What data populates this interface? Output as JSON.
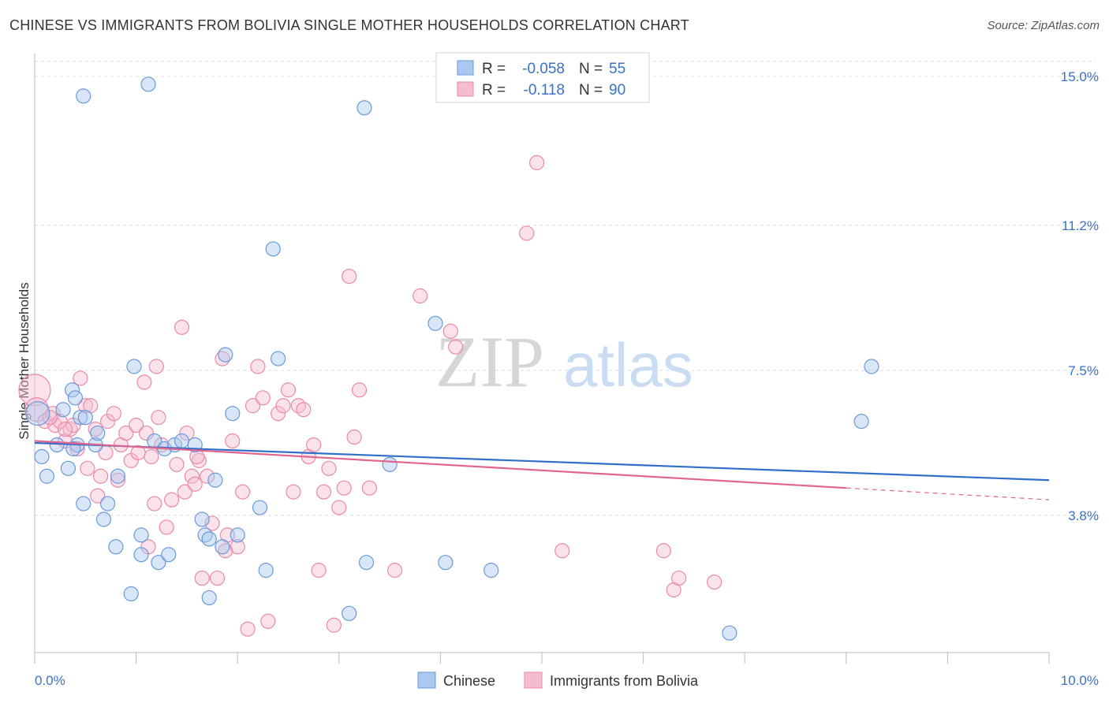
{
  "title": "CHINESE VS IMMIGRANTS FROM BOLIVIA SINGLE MOTHER HOUSEHOLDS CORRELATION CHART",
  "source": "Source: ZipAtlas.com",
  "watermark": {
    "part1": "ZIP",
    "part2": "atlas"
  },
  "legend": {
    "rows": [
      {
        "r_label": "R =",
        "r_value": "-0.058",
        "n_label": "N =",
        "n_value": "55"
      },
      {
        "r_label": "R =",
        "r_value": "-0.118",
        "n_label": "N =",
        "n_value": "90"
      }
    ]
  },
  "bottom_legend": [
    "Chinese",
    "Immigrants from Bolivia"
  ],
  "colors": {
    "chinese_fill": "#aac8f0",
    "chinese_stroke": "#6a9ad8",
    "chinese_line": "#2f6fc8",
    "bolivia_fill": "#f5bcd0",
    "bolivia_stroke": "#e88aaa",
    "bolivia_line": "#e0658e",
    "grid": "#dddddd",
    "tick_label": "#3a72c4"
  },
  "chart_data": {
    "type": "scatter",
    "title": "CHINESE VS IMMIGRANTS FROM BOLIVIA SINGLE MOTHER HOUSEHOLDS CORRELATION CHART",
    "xlabel": "",
    "ylabel": "Single Mother Households",
    "xlim": [
      0.0,
      10.0
    ],
    "ylim": [
      0.0,
      15.5
    ],
    "x_tick_labels": {
      "left": "0.0%",
      "right": "10.0%"
    },
    "y_ticks": [
      {
        "value": 3.8,
        "label": "3.8%"
      },
      {
        "value": 7.5,
        "label": "7.5%"
      },
      {
        "value": 11.2,
        "label": "11.2%"
      },
      {
        "value": 15.0,
        "label": "15.0%"
      }
    ],
    "series": [
      {
        "name": "Chinese",
        "trend": {
          "x0": 0.0,
          "y0": 5.65,
          "x1": 10.0,
          "y1": 4.7,
          "dash_from": null
        },
        "points": [
          [
            0.03,
            6.4
          ],
          [
            0.07,
            5.3
          ],
          [
            0.12,
            4.8
          ],
          [
            0.22,
            5.6
          ],
          [
            0.28,
            6.5
          ],
          [
            0.33,
            5.0
          ],
          [
            0.37,
            7.0
          ],
          [
            0.4,
            6.8
          ],
          [
            0.42,
            5.6
          ],
          [
            0.45,
            6.3
          ],
          [
            0.48,
            4.1
          ],
          [
            0.5,
            6.3
          ],
          [
            0.6,
            5.6
          ],
          [
            0.62,
            5.9
          ],
          [
            0.68,
            3.7
          ],
          [
            0.72,
            4.1
          ],
          [
            0.8,
            3.0
          ],
          [
            0.98,
            7.6
          ],
          [
            1.05,
            3.3
          ],
          [
            1.05,
            2.8
          ],
          [
            1.18,
            5.7
          ],
          [
            1.22,
            2.6
          ],
          [
            1.28,
            5.5
          ],
          [
            1.32,
            2.8
          ],
          [
            1.38,
            5.6
          ],
          [
            1.45,
            5.7
          ],
          [
            1.58,
            5.6
          ],
          [
            1.65,
            3.7
          ],
          [
            1.68,
            3.3
          ],
          [
            1.72,
            1.7
          ],
          [
            1.78,
            4.7
          ],
          [
            1.85,
            3.0
          ],
          [
            1.88,
            7.9
          ],
          [
            1.95,
            6.4
          ],
          [
            1.72,
            3.2
          ],
          [
            2.0,
            3.3
          ],
          [
            2.22,
            4.0
          ],
          [
            2.28,
            2.4
          ],
          [
            2.35,
            10.6
          ],
          [
            2.4,
            7.8
          ],
          [
            3.25,
            14.2
          ],
          [
            3.5,
            5.1
          ],
          [
            0.48,
            14.5
          ],
          [
            1.12,
            14.8
          ],
          [
            3.27,
            2.6
          ],
          [
            3.95,
            8.7
          ],
          [
            4.05,
            2.6
          ],
          [
            4.5,
            2.4
          ],
          [
            6.85,
            0.8
          ],
          [
            8.15,
            6.2
          ],
          [
            8.25,
            7.6
          ],
          [
            0.38,
            5.5
          ],
          [
            0.82,
            4.8
          ],
          [
            0.95,
            1.8
          ],
          [
            3.1,
            1.3
          ]
        ]
      },
      {
        "name": "Immigrants from Bolivia",
        "trend": {
          "x0": 0.0,
          "y0": 5.7,
          "x1": 10.0,
          "y1": 4.2,
          "dash_from": 8.0
        },
        "points": [
          [
            0.0,
            7.0
          ],
          [
            0.02,
            6.5
          ],
          [
            0.1,
            6.2
          ],
          [
            0.18,
            6.4
          ],
          [
            0.2,
            6.1
          ],
          [
            0.25,
            6.2
          ],
          [
            0.3,
            5.7
          ],
          [
            0.35,
            6.0
          ],
          [
            0.38,
            6.1
          ],
          [
            0.42,
            5.5
          ],
          [
            0.45,
            7.3
          ],
          [
            0.5,
            6.6
          ],
          [
            0.52,
            5.0
          ],
          [
            0.55,
            6.6
          ],
          [
            0.62,
            4.3
          ],
          [
            0.65,
            4.8
          ],
          [
            0.7,
            5.4
          ],
          [
            0.72,
            6.2
          ],
          [
            0.78,
            6.4
          ],
          [
            0.82,
            4.7
          ],
          [
            0.85,
            5.6
          ],
          [
            0.9,
            5.9
          ],
          [
            0.95,
            5.2
          ],
          [
            1.0,
            6.1
          ],
          [
            1.02,
            5.4
          ],
          [
            1.08,
            7.2
          ],
          [
            1.1,
            5.9
          ],
          [
            1.12,
            3.0
          ],
          [
            1.15,
            5.3
          ],
          [
            1.18,
            4.1
          ],
          [
            1.2,
            7.6
          ],
          [
            1.25,
            5.6
          ],
          [
            1.3,
            3.5
          ],
          [
            1.35,
            4.2
          ],
          [
            1.4,
            5.1
          ],
          [
            1.45,
            8.6
          ],
          [
            1.48,
            4.4
          ],
          [
            1.5,
            5.9
          ],
          [
            1.55,
            4.8
          ],
          [
            1.58,
            4.6
          ],
          [
            1.62,
            5.2
          ],
          [
            1.7,
            4.8
          ],
          [
            1.75,
            3.6
          ],
          [
            1.8,
            2.2
          ],
          [
            1.85,
            7.8
          ],
          [
            1.88,
            2.9
          ],
          [
            1.9,
            3.3
          ],
          [
            1.95,
            5.7
          ],
          [
            2.0,
            3.0
          ],
          [
            2.05,
            4.4
          ],
          [
            2.1,
            0.9
          ],
          [
            2.15,
            6.6
          ],
          [
            2.2,
            7.6
          ],
          [
            2.25,
            6.8
          ],
          [
            2.3,
            1.1
          ],
          [
            2.4,
            6.4
          ],
          [
            2.45,
            6.6
          ],
          [
            2.5,
            7.0
          ],
          [
            2.55,
            4.4
          ],
          [
            2.6,
            6.6
          ],
          [
            2.65,
            6.5
          ],
          [
            2.7,
            5.3
          ],
          [
            2.75,
            5.6
          ],
          [
            2.8,
            2.4
          ],
          [
            2.85,
            4.4
          ],
          [
            2.9,
            5.0
          ],
          [
            2.95,
            1.0
          ],
          [
            3.0,
            4.0
          ],
          [
            3.05,
            4.5
          ],
          [
            3.1,
            9.9
          ],
          [
            3.15,
            5.8
          ],
          [
            3.2,
            7.0
          ],
          [
            3.3,
            4.5
          ],
          [
            3.55,
            2.4
          ],
          [
            3.8,
            9.4
          ],
          [
            4.1,
            8.5
          ],
          [
            4.15,
            8.1
          ],
          [
            4.85,
            11.0
          ],
          [
            4.95,
            12.8
          ],
          [
            5.2,
            2.9
          ],
          [
            6.2,
            2.9
          ],
          [
            6.3,
            1.9
          ],
          [
            6.35,
            2.2
          ],
          [
            6.7,
            2.1
          ],
          [
            0.6,
            6.0
          ],
          [
            0.15,
            6.3
          ],
          [
            1.22,
            6.3
          ],
          [
            1.6,
            5.3
          ],
          [
            0.3,
            6.0
          ],
          [
            1.65,
            2.2
          ]
        ]
      }
    ]
  }
}
